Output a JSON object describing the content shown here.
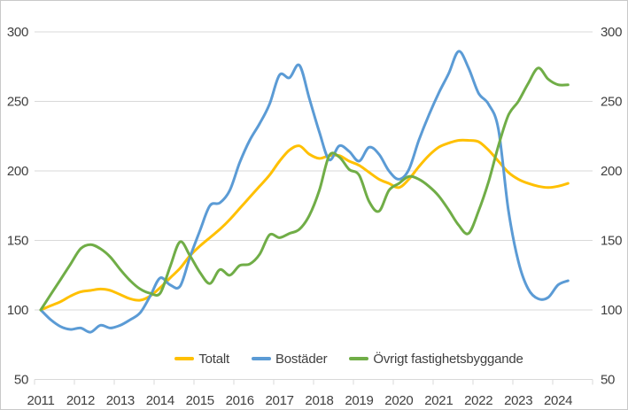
{
  "window": {
    "background_color": "#FFFFFF",
    "border_color": "#C9C9C9"
  },
  "chart_data": {
    "type": "line",
    "title": "",
    "xlabel": "",
    "ylabel": "",
    "ylim": [
      50,
      300
    ],
    "xlim": [
      2011,
      2025
    ],
    "grid": true,
    "dual_y_axis": true,
    "legend_position": "bottom-center",
    "gridline_color": "#D9D9D9",
    "axis_text_color": "#404040",
    "y_gridlines": [
      300,
      250,
      200,
      150,
      100
    ],
    "y_tick_labels": [
      "300",
      "250",
      "200",
      "150",
      "100",
      "50"
    ],
    "x_tick_labels": [
      "2011",
      "2012",
      "2013",
      "2014",
      "2015",
      "2016",
      "2017",
      "2018",
      "2019",
      "2020",
      "2021",
      "2022",
      "2023",
      "2024"
    ],
    "x": [
      2011,
      2011.25,
      2011.5,
      2011.75,
      2012,
      2012.25,
      2012.5,
      2012.75,
      2013,
      2013.25,
      2013.5,
      2013.75,
      2014,
      2014.25,
      2014.5,
      2014.75,
      2015,
      2015.25,
      2015.5,
      2015.75,
      2016,
      2016.25,
      2016.5,
      2016.75,
      2017,
      2017.25,
      2017.5,
      2017.75,
      2018,
      2018.25,
      2018.5,
      2018.75,
      2019,
      2019.25,
      2019.5,
      2019.75,
      2020,
      2020.25,
      2020.5,
      2020.75,
      2021,
      2021.25,
      2021.5,
      2021.75,
      2022,
      2022.25,
      2022.5,
      2022.75,
      2023,
      2023.25,
      2023.5,
      2023.75,
      2024,
      2024.25
    ],
    "series": [
      {
        "name": "Totalt",
        "color": "#FFC000",
        "values": [
          100,
          103,
          106,
          110,
          113,
          114,
          115,
          114,
          111,
          108,
          107,
          110,
          116,
          123,
          130,
          139,
          146,
          152,
          158,
          165,
          173,
          181,
          189,
          197,
          207,
          215,
          218,
          212,
          209,
          211,
          211,
          207,
          204,
          199,
          194,
          191,
          188,
          194,
          203,
          211,
          217,
          220,
          222,
          222,
          221,
          215,
          207,
          199,
          194,
          191,
          189,
          188,
          189,
          191
        ]
      },
      {
        "name": "Bostäder",
        "color": "#5B9BD5",
        "values": [
          100,
          93,
          88,
          86,
          87,
          84,
          89,
          87,
          89,
          93,
          98,
          110,
          123,
          118,
          117,
          138,
          157,
          175,
          177,
          186,
          206,
          222,
          234,
          248,
          269,
          267,
          276,
          252,
          228,
          208,
          218,
          214,
          207,
          217,
          212,
          200,
          194,
          201,
          222,
          240,
          256,
          270,
          286,
          274,
          256,
          248,
          230,
          172,
          135,
          115,
          108,
          109,
          118,
          121
        ]
      },
      {
        "name": "Övrigt fastighetsbyggande",
        "color": "#70AD47",
        "values": [
          100,
          111,
          122,
          133,
          144,
          147,
          144,
          138,
          129,
          121,
          115,
          112,
          112,
          131,
          149,
          139,
          127,
          119,
          129,
          125,
          132,
          133,
          140,
          154,
          152,
          155,
          158,
          168,
          186,
          211,
          210,
          201,
          197,
          178,
          171,
          186,
          191,
          196,
          194,
          189,
          182,
          172,
          161,
          155,
          171,
          192,
          218,
          240,
          250,
          263,
          274,
          266,
          262,
          262
        ]
      }
    ]
  }
}
